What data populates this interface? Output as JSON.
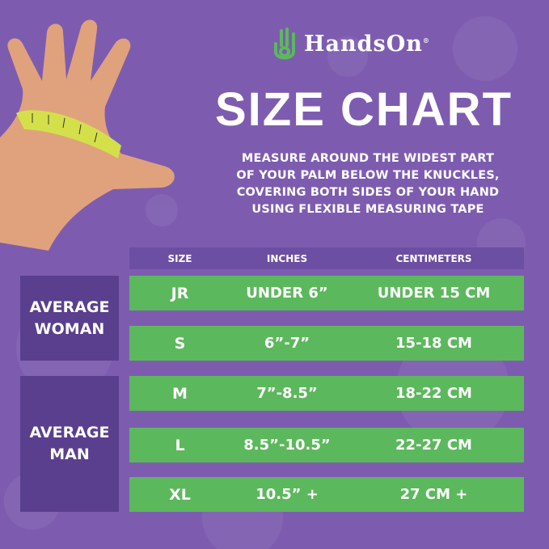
{
  "brand": {
    "name": "HandsOn",
    "registered": "®",
    "logo_icon": "hand-logo-icon",
    "accent": "#5cb85c"
  },
  "title": "SIZE CHART",
  "instructions": [
    "MEASURE AROUND THE WIDEST PART",
    "OF YOUR PALM BELOW THE KNUCKLES,",
    "COVERING BOTH SIDES OF YOUR HAND",
    "USING FLEXIBLE MEASURING TAPE"
  ],
  "table": {
    "headers": [
      "SIZE",
      "INCHES",
      "CENTIMETERS"
    ],
    "groups": [
      {
        "label": [
          "AVERAGE",
          "WOMAN"
        ]
      },
      {
        "label": [
          "AVERAGE",
          "MAN"
        ]
      }
    ],
    "rows": [
      [
        "JR",
        "UNDER 6”",
        "UNDER 15 CM"
      ],
      [
        "S",
        "6”-7”",
        "15-18 CM"
      ],
      [
        "M",
        "7”-8.5”",
        "18-22 CM"
      ],
      [
        "L",
        "8.5”-10.5”",
        "22-27 CM"
      ],
      [
        "XL",
        "10.5” +",
        "27 CM +"
      ]
    ]
  },
  "colors": {
    "background": "#7d5cb0",
    "row": "#5cb85c",
    "group": "#5a3f8e",
    "header": "#6c4ea2"
  }
}
